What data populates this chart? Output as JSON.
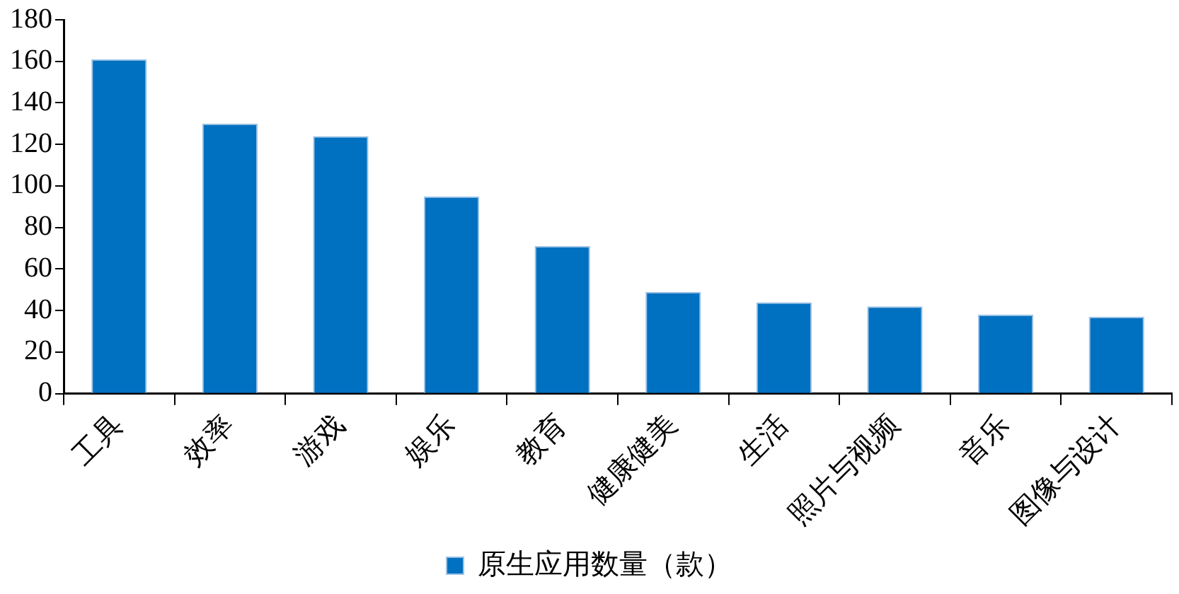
{
  "chart_data": {
    "type": "bar",
    "categories": [
      "工具",
      "效率",
      "游戏",
      "娱乐",
      "教育",
      "健康健美",
      "生活",
      "照片与视频",
      "音乐",
      "图像与设计"
    ],
    "series": [
      {
        "name": "原生应用数量（款）",
        "color": "#0070c0",
        "values": [
          161,
          130,
          124,
          95,
          71,
          49,
          44,
          42,
          38,
          37
        ]
      }
    ],
    "ylim": [
      0,
      180
    ],
    "yticks": [
      0,
      20,
      40,
      60,
      80,
      100,
      120,
      140,
      160,
      180
    ],
    "grid": false,
    "legend": "bottom"
  }
}
